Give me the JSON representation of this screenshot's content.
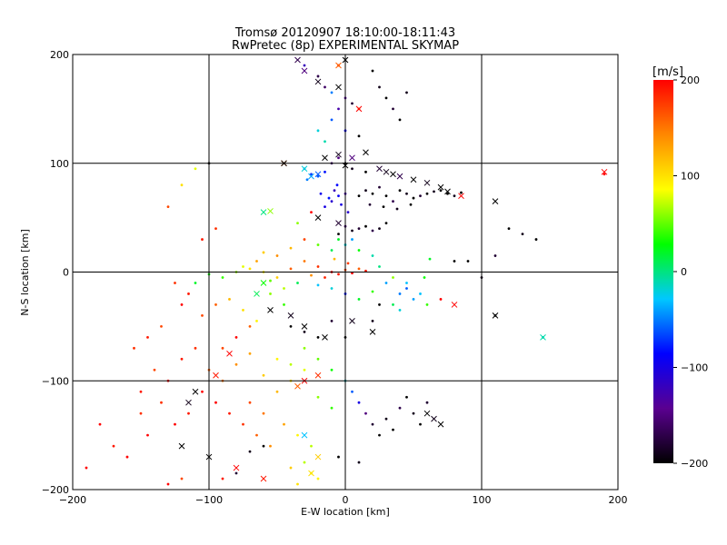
{
  "chart_data": {
    "type": "scatter",
    "title": "Tromsø 20120907 18:10:00-18:11:43",
    "subtitle": "RwPretec (8p) EXPERIMENTAL SKYMAP",
    "xlabel": "E-W location [km]",
    "ylabel": "N-S location [km]",
    "xlim": [
      -200,
      200
    ],
    "ylim": [
      -200,
      200
    ],
    "xticks": [
      -200,
      -100,
      0,
      100,
      200
    ],
    "yticks": [
      -200,
      -100,
      0,
      100,
      200
    ],
    "grid": true,
    "colorbar": {
      "label": "[m/s]",
      "range": [
        -200,
        200
      ],
      "ticks": [
        -200,
        -100,
        0,
        100,
        200
      ],
      "colormap": [
        "#000000",
        "#5a0090",
        "#0000ff",
        "#00c8ff",
        "#00ff00",
        "#ffff00",
        "#ff8800",
        "#ff0000"
      ]
    },
    "points": [
      [
        -30,
        10,
        150
      ],
      [
        -20,
        5,
        180
      ],
      [
        -10,
        0,
        200
      ],
      [
        -5,
        -2,
        190
      ],
      [
        0,
        2,
        170
      ],
      [
        5,
        -1,
        200
      ],
      [
        10,
        3,
        160
      ],
      [
        15,
        1,
        190
      ],
      [
        -25,
        -3,
        140
      ],
      [
        -15,
        -5,
        185
      ],
      [
        2,
        8,
        175
      ],
      [
        -8,
        12,
        120
      ],
      [
        -40,
        3,
        160
      ],
      [
        -50,
        -5,
        110
      ],
      [
        -60,
        0,
        90
      ],
      [
        -70,
        3,
        100
      ],
      [
        -80,
        0,
        60
      ],
      [
        -90,
        -5,
        40
      ],
      [
        -100,
        -2,
        30
      ],
      [
        -110,
        -10,
        20
      ],
      [
        -65,
        10,
        130
      ],
      [
        -75,
        5,
        80
      ],
      [
        -55,
        -8,
        50
      ],
      [
        -45,
        -15,
        70
      ],
      [
        -35,
        -10,
        10
      ],
      [
        -20,
        -12,
        -30
      ],
      [
        -10,
        -15,
        -20
      ],
      [
        0,
        -20,
        -80
      ],
      [
        10,
        -25,
        20
      ],
      [
        20,
        -18,
        40
      ],
      [
        30,
        -10,
        -40
      ],
      [
        40,
        -20,
        -50
      ],
      [
        45,
        -10,
        -30
      ],
      [
        35,
        -5,
        60
      ],
      [
        25,
        5,
        0
      ],
      [
        20,
        15,
        -10
      ],
      [
        10,
        20,
        30
      ],
      [
        0,
        25,
        -20
      ],
      [
        -10,
        20,
        10
      ],
      [
        -20,
        25,
        50
      ],
      [
        -5,
        35,
        -200
      ],
      [
        5,
        38,
        -190
      ],
      [
        10,
        40,
        -180
      ],
      [
        15,
        42,
        -200
      ],
      [
        20,
        38,
        -170
      ],
      [
        25,
        40,
        -190
      ],
      [
        30,
        45,
        -200
      ],
      [
        0,
        42,
        -160
      ],
      [
        -5,
        30,
        20
      ],
      [
        5,
        30,
        -40
      ],
      [
        -15,
        60,
        -100
      ],
      [
        -10,
        65,
        -110
      ],
      [
        -5,
        70,
        -90
      ],
      [
        -8,
        75,
        -120
      ],
      [
        -12,
        68,
        -80
      ],
      [
        -3,
        62,
        -100
      ],
      [
        0,
        72,
        -130
      ],
      [
        -18,
        72,
        -95
      ],
      [
        2,
        55,
        -110
      ],
      [
        -6,
        80,
        -85
      ],
      [
        10,
        70,
        -200
      ],
      [
        15,
        75,
        -190
      ],
      [
        20,
        72,
        -200
      ],
      [
        25,
        78,
        -180
      ],
      [
        30,
        70,
        -200
      ],
      [
        35,
        65,
        -170
      ],
      [
        40,
        75,
        -200
      ],
      [
        45,
        72,
        -190
      ],
      [
        50,
        68,
        -200
      ],
      [
        55,
        70,
        -180
      ],
      [
        60,
        72,
        -200
      ],
      [
        65,
        74,
        -190
      ],
      [
        70,
        75,
        -200
      ],
      [
        75,
        72,
        -200
      ],
      [
        80,
        70,
        -190
      ],
      [
        85,
        73,
        -200
      ],
      [
        28,
        60,
        -200
      ],
      [
        38,
        58,
        -190
      ],
      [
        18,
        62,
        -180
      ],
      [
        48,
        62,
        -200
      ],
      [
        -25,
        90,
        -70
      ],
      [
        -20,
        88,
        -60
      ],
      [
        -15,
        92,
        -80
      ],
      [
        -28,
        85,
        -50
      ],
      [
        -30,
        95,
        -40
      ],
      [
        -10,
        100,
        -160
      ],
      [
        -5,
        105,
        -150
      ],
      [
        0,
        100,
        -200
      ],
      [
        5,
        95,
        -190
      ],
      [
        15,
        92,
        -200
      ],
      [
        -5,
        150,
        -130
      ],
      [
        0,
        160,
        -140
      ],
      [
        5,
        155,
        -180
      ],
      [
        10,
        150,
        160
      ],
      [
        -10,
        165,
        -50
      ],
      [
        -15,
        170,
        -160
      ],
      [
        -20,
        180,
        -170
      ],
      [
        -30,
        190,
        -120
      ],
      [
        -5,
        190,
        170
      ],
      [
        20,
        185,
        -200
      ],
      [
        25,
        170,
        -190
      ],
      [
        30,
        160,
        -200
      ],
      [
        35,
        150,
        -180
      ],
      [
        40,
        140,
        -200
      ],
      [
        45,
        165,
        -190
      ],
      [
        -10,
        140,
        -60
      ],
      [
        -20,
        130,
        -20
      ],
      [
        -15,
        120,
        -10
      ],
      [
        0,
        130,
        -90
      ],
      [
        10,
        125,
        -200
      ],
      [
        -70,
        -120,
        170
      ],
      [
        -60,
        -130,
        150
      ],
      [
        -50,
        -110,
        120
      ],
      [
        -40,
        -100,
        100
      ],
      [
        -30,
        -90,
        80
      ],
      [
        -20,
        -115,
        60
      ],
      [
        -10,
        -125,
        40
      ],
      [
        -45,
        -140,
        130
      ],
      [
        -35,
        -150,
        90
      ],
      [
        -25,
        -160,
        70
      ],
      [
        -55,
        -160,
        140
      ],
      [
        -65,
        -150,
        160
      ],
      [
        -75,
        -140,
        180
      ],
      [
        -85,
        -130,
        190
      ],
      [
        -95,
        -120,
        200
      ],
      [
        -105,
        -110,
        200
      ],
      [
        -115,
        -130,
        190
      ],
      [
        -125,
        -140,
        200
      ],
      [
        -135,
        -120,
        180
      ],
      [
        -145,
        -150,
        200
      ],
      [
        -150,
        -110,
        190
      ],
      [
        -140,
        -90,
        170
      ],
      [
        -130,
        -100,
        200
      ],
      [
        -120,
        -80,
        190
      ],
      [
        -110,
        -70,
        180
      ],
      [
        -100,
        -90,
        160
      ],
      [
        -90,
        -100,
        150
      ],
      [
        -80,
        -85,
        140
      ],
      [
        -70,
        -75,
        130
      ],
      [
        -60,
        -95,
        110
      ],
      [
        -50,
        -80,
        90
      ],
      [
        -40,
        -85,
        70
      ],
      [
        -30,
        -70,
        60
      ],
      [
        -20,
        -80,
        50
      ],
      [
        -10,
        -90,
        30
      ],
      [
        0,
        -100,
        -20
      ],
      [
        5,
        -110,
        -60
      ],
      [
        10,
        -120,
        -100
      ],
      [
        15,
        -130,
        -150
      ],
      [
        20,
        -140,
        -180
      ],
      [
        25,
        -150,
        -200
      ],
      [
        30,
        -135,
        -190
      ],
      [
        35,
        -145,
        -200
      ],
      [
        40,
        -125,
        -170
      ],
      [
        45,
        -115,
        -200
      ],
      [
        50,
        -130,
        -190
      ],
      [
        55,
        -140,
        -200
      ],
      [
        60,
        -120,
        -180
      ],
      [
        -5,
        -170,
        -200
      ],
      [
        10,
        -175,
        -190
      ],
      [
        -30,
        -175,
        70
      ],
      [
        -25,
        -185,
        80
      ],
      [
        -20,
        -190,
        90
      ],
      [
        -35,
        -195,
        100
      ],
      [
        -40,
        -180,
        110
      ],
      [
        -115,
        -20,
        190
      ],
      [
        -120,
        -30,
        200
      ],
      [
        -125,
        -10,
        180
      ],
      [
        -105,
        -40,
        170
      ],
      [
        -95,
        -30,
        160
      ],
      [
        -85,
        -25,
        120
      ],
      [
        -75,
        -35,
        100
      ],
      [
        -65,
        -45,
        90
      ],
      [
        -55,
        -20,
        60
      ],
      [
        -45,
        -30,
        40
      ],
      [
        40,
        -35,
        -20
      ],
      [
        50,
        -25,
        -40
      ],
      [
        45,
        -15,
        -60
      ],
      [
        35,
        -30,
        10
      ],
      [
        55,
        -20,
        -30
      ],
      [
        -170,
        -160,
        190
      ],
      [
        -160,
        -170,
        200
      ],
      [
        -150,
        -130,
        180
      ],
      [
        -180,
        -140,
        200
      ],
      [
        -190,
        -180,
        200
      ],
      [
        -155,
        -70,
        180
      ],
      [
        -145,
        -60,
        190
      ],
      [
        -135,
        -50,
        170
      ],
      [
        -95,
        40,
        180
      ],
      [
        -105,
        30,
        190
      ],
      [
        -130,
        60,
        170
      ],
      [
        -120,
        80,
        100
      ],
      [
        -110,
        95,
        80
      ],
      [
        -100,
        100,
        -200
      ],
      [
        -60,
        -160,
        -200
      ],
      [
        -70,
        -165,
        -190
      ],
      [
        -80,
        -185,
        -180
      ],
      [
        -90,
        -190,
        190
      ],
      [
        -120,
        -190,
        170
      ],
      [
        -130,
        -195,
        200
      ],
      [
        120,
        40,
        -200
      ],
      [
        130,
        35,
        -190
      ],
      [
        140,
        30,
        -200
      ],
      [
        110,
        15,
        -180
      ],
      [
        90,
        10,
        -200
      ],
      [
        100,
        -5,
        -190
      ],
      [
        110,
        -40,
        -200
      ],
      [
        145,
        -60,
        -10
      ],
      [
        190,
        90,
        200
      ],
      [
        80,
        10,
        -200
      ],
      [
        -90,
        -70,
        170
      ],
      [
        -80,
        -60,
        200
      ],
      [
        -70,
        -50,
        160
      ],
      [
        -40,
        -50,
        -200
      ],
      [
        -30,
        -55,
        -190
      ],
      [
        -20,
        -60,
        -200
      ],
      [
        -10,
        -45,
        -180
      ],
      [
        0,
        -60,
        -200
      ],
      [
        20,
        -45,
        -190
      ],
      [
        25,
        -30,
        -200
      ],
      [
        70,
        -25,
        200
      ],
      [
        60,
        -30,
        40
      ],
      [
        58,
        -5,
        30
      ],
      [
        62,
        12,
        20
      ],
      [
        -25,
        55,
        200
      ],
      [
        -30,
        30,
        170
      ],
      [
        -40,
        22,
        120
      ],
      [
        -50,
        15,
        140
      ],
      [
        -60,
        18,
        110
      ],
      [
        -35,
        45,
        60
      ]
    ],
    "markers_x": [
      [
        -35,
        195,
        -170
      ],
      [
        -30,
        185,
        -150
      ],
      [
        -5,
        190,
        160
      ],
      [
        -5,
        170,
        -200
      ],
      [
        -20,
        175,
        -190
      ],
      [
        10,
        150,
        200
      ],
      [
        -15,
        105,
        -200
      ],
      [
        -5,
        108,
        -190
      ],
      [
        0,
        98,
        -200
      ],
      [
        5,
        105,
        -150
      ],
      [
        15,
        110,
        -200
      ],
      [
        25,
        95,
        -180
      ],
      [
        30,
        92,
        -190
      ],
      [
        35,
        90,
        -200
      ],
      [
        40,
        88,
        -170
      ],
      [
        50,
        85,
        -200
      ],
      [
        60,
        82,
        -190
      ],
      [
        70,
        78,
        -200
      ],
      [
        75,
        74,
        -200
      ],
      [
        85,
        70,
        200
      ],
      [
        110,
        65,
        -200
      ],
      [
        190,
        92,
        200
      ],
      [
        -25,
        88,
        -40
      ],
      [
        -20,
        90,
        -60
      ],
      [
        -30,
        95,
        -20
      ],
      [
        -45,
        100,
        160
      ],
      [
        -55,
        56,
        60
      ],
      [
        -60,
        -10,
        30
      ],
      [
        -65,
        -20,
        10
      ],
      [
        -55,
        -35,
        -200
      ],
      [
        -40,
        -40,
        -190
      ],
      [
        -30,
        -50,
        -200
      ],
      [
        -15,
        -60,
        -200
      ],
      [
        5,
        -45,
        -190
      ],
      [
        20,
        -55,
        -200
      ],
      [
        -85,
        -75,
        200
      ],
      [
        -95,
        -95,
        190
      ],
      [
        -110,
        -110,
        -200
      ],
      [
        -115,
        -120,
        -190
      ],
      [
        -120,
        -160,
        -200
      ],
      [
        -100,
        -170,
        -200
      ],
      [
        -80,
        -180,
        200
      ],
      [
        -60,
        -190,
        190
      ],
      [
        -25,
        -185,
        100
      ],
      [
        -20,
        -170,
        110
      ],
      [
        -30,
        -150,
        -30
      ],
      [
        60,
        -130,
        -200
      ],
      [
        65,
        -135,
        -190
      ],
      [
        70,
        -140,
        -200
      ],
      [
        110,
        -40,
        -200
      ],
      [
        145,
        -60,
        -10
      ],
      [
        80,
        -30,
        200
      ],
      [
        -30,
        -100,
        200
      ],
      [
        -20,
        -95,
        180
      ],
      [
        -35,
        -105,
        160
      ],
      [
        -60,
        55,
        0
      ],
      [
        -45,
        100,
        -200
      ],
      [
        0,
        195,
        -200
      ],
      [
        -20,
        50,
        -200
      ],
      [
        -5,
        45,
        -180
      ]
    ]
  }
}
